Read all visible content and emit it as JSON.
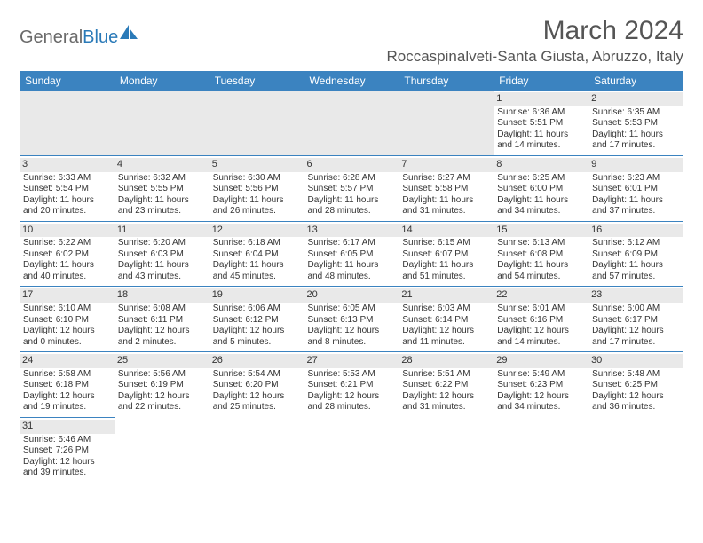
{
  "brand": {
    "part1": "General",
    "part2": "Blue",
    "logo_color": "#2a7ab8"
  },
  "month_title": "March 2024",
  "location": "Roccaspinalveti-Santa Giusta, Abruzzo, Italy",
  "weekdays": [
    "Sunday",
    "Monday",
    "Tuesday",
    "Wednesday",
    "Thursday",
    "Friday",
    "Saturday"
  ],
  "colors": {
    "header_bg": "#3b83c0",
    "header_text": "#ffffff",
    "cell_border": "#3b83c0",
    "daynum_bg": "#e9e9e9",
    "text": "#333333"
  },
  "weeks": [
    [
      {
        "blank": true
      },
      {
        "blank": true
      },
      {
        "blank": true
      },
      {
        "blank": true
      },
      {
        "blank": true
      },
      {
        "day": "1",
        "sunrise": "Sunrise: 6:36 AM",
        "sunset": "Sunset: 5:51 PM",
        "day1": "Daylight: 11 hours",
        "day2": "and 14 minutes."
      },
      {
        "day": "2",
        "sunrise": "Sunrise: 6:35 AM",
        "sunset": "Sunset: 5:53 PM",
        "day1": "Daylight: 11 hours",
        "day2": "and 17 minutes."
      }
    ],
    [
      {
        "day": "3",
        "sunrise": "Sunrise: 6:33 AM",
        "sunset": "Sunset: 5:54 PM",
        "day1": "Daylight: 11 hours",
        "day2": "and 20 minutes."
      },
      {
        "day": "4",
        "sunrise": "Sunrise: 6:32 AM",
        "sunset": "Sunset: 5:55 PM",
        "day1": "Daylight: 11 hours",
        "day2": "and 23 minutes."
      },
      {
        "day": "5",
        "sunrise": "Sunrise: 6:30 AM",
        "sunset": "Sunset: 5:56 PM",
        "day1": "Daylight: 11 hours",
        "day2": "and 26 minutes."
      },
      {
        "day": "6",
        "sunrise": "Sunrise: 6:28 AM",
        "sunset": "Sunset: 5:57 PM",
        "day1": "Daylight: 11 hours",
        "day2": "and 28 minutes."
      },
      {
        "day": "7",
        "sunrise": "Sunrise: 6:27 AM",
        "sunset": "Sunset: 5:58 PM",
        "day1": "Daylight: 11 hours",
        "day2": "and 31 minutes."
      },
      {
        "day": "8",
        "sunrise": "Sunrise: 6:25 AM",
        "sunset": "Sunset: 6:00 PM",
        "day1": "Daylight: 11 hours",
        "day2": "and 34 minutes."
      },
      {
        "day": "9",
        "sunrise": "Sunrise: 6:23 AM",
        "sunset": "Sunset: 6:01 PM",
        "day1": "Daylight: 11 hours",
        "day2": "and 37 minutes."
      }
    ],
    [
      {
        "day": "10",
        "sunrise": "Sunrise: 6:22 AM",
        "sunset": "Sunset: 6:02 PM",
        "day1": "Daylight: 11 hours",
        "day2": "and 40 minutes."
      },
      {
        "day": "11",
        "sunrise": "Sunrise: 6:20 AM",
        "sunset": "Sunset: 6:03 PM",
        "day1": "Daylight: 11 hours",
        "day2": "and 43 minutes."
      },
      {
        "day": "12",
        "sunrise": "Sunrise: 6:18 AM",
        "sunset": "Sunset: 6:04 PM",
        "day1": "Daylight: 11 hours",
        "day2": "and 45 minutes."
      },
      {
        "day": "13",
        "sunrise": "Sunrise: 6:17 AM",
        "sunset": "Sunset: 6:05 PM",
        "day1": "Daylight: 11 hours",
        "day2": "and 48 minutes."
      },
      {
        "day": "14",
        "sunrise": "Sunrise: 6:15 AM",
        "sunset": "Sunset: 6:07 PM",
        "day1": "Daylight: 11 hours",
        "day2": "and 51 minutes."
      },
      {
        "day": "15",
        "sunrise": "Sunrise: 6:13 AM",
        "sunset": "Sunset: 6:08 PM",
        "day1": "Daylight: 11 hours",
        "day2": "and 54 minutes."
      },
      {
        "day": "16",
        "sunrise": "Sunrise: 6:12 AM",
        "sunset": "Sunset: 6:09 PM",
        "day1": "Daylight: 11 hours",
        "day2": "and 57 minutes."
      }
    ],
    [
      {
        "day": "17",
        "sunrise": "Sunrise: 6:10 AM",
        "sunset": "Sunset: 6:10 PM",
        "day1": "Daylight: 12 hours",
        "day2": "and 0 minutes."
      },
      {
        "day": "18",
        "sunrise": "Sunrise: 6:08 AM",
        "sunset": "Sunset: 6:11 PM",
        "day1": "Daylight: 12 hours",
        "day2": "and 2 minutes."
      },
      {
        "day": "19",
        "sunrise": "Sunrise: 6:06 AM",
        "sunset": "Sunset: 6:12 PM",
        "day1": "Daylight: 12 hours",
        "day2": "and 5 minutes."
      },
      {
        "day": "20",
        "sunrise": "Sunrise: 6:05 AM",
        "sunset": "Sunset: 6:13 PM",
        "day1": "Daylight: 12 hours",
        "day2": "and 8 minutes."
      },
      {
        "day": "21",
        "sunrise": "Sunrise: 6:03 AM",
        "sunset": "Sunset: 6:14 PM",
        "day1": "Daylight: 12 hours",
        "day2": "and 11 minutes."
      },
      {
        "day": "22",
        "sunrise": "Sunrise: 6:01 AM",
        "sunset": "Sunset: 6:16 PM",
        "day1": "Daylight: 12 hours",
        "day2": "and 14 minutes."
      },
      {
        "day": "23",
        "sunrise": "Sunrise: 6:00 AM",
        "sunset": "Sunset: 6:17 PM",
        "day1": "Daylight: 12 hours",
        "day2": "and 17 minutes."
      }
    ],
    [
      {
        "day": "24",
        "sunrise": "Sunrise: 5:58 AM",
        "sunset": "Sunset: 6:18 PM",
        "day1": "Daylight: 12 hours",
        "day2": "and 19 minutes."
      },
      {
        "day": "25",
        "sunrise": "Sunrise: 5:56 AM",
        "sunset": "Sunset: 6:19 PM",
        "day1": "Daylight: 12 hours",
        "day2": "and 22 minutes."
      },
      {
        "day": "26",
        "sunrise": "Sunrise: 5:54 AM",
        "sunset": "Sunset: 6:20 PM",
        "day1": "Daylight: 12 hours",
        "day2": "and 25 minutes."
      },
      {
        "day": "27",
        "sunrise": "Sunrise: 5:53 AM",
        "sunset": "Sunset: 6:21 PM",
        "day1": "Daylight: 12 hours",
        "day2": "and 28 minutes."
      },
      {
        "day": "28",
        "sunrise": "Sunrise: 5:51 AM",
        "sunset": "Sunset: 6:22 PM",
        "day1": "Daylight: 12 hours",
        "day2": "and 31 minutes."
      },
      {
        "day": "29",
        "sunrise": "Sunrise: 5:49 AM",
        "sunset": "Sunset: 6:23 PM",
        "day1": "Daylight: 12 hours",
        "day2": "and 34 minutes."
      },
      {
        "day": "30",
        "sunrise": "Sunrise: 5:48 AM",
        "sunset": "Sunset: 6:25 PM",
        "day1": "Daylight: 12 hours",
        "day2": "and 36 minutes."
      }
    ],
    [
      {
        "day": "31",
        "sunrise": "Sunrise: 6:46 AM",
        "sunset": "Sunset: 7:26 PM",
        "day1": "Daylight: 12 hours",
        "day2": "and 39 minutes."
      },
      {
        "blank": true
      },
      {
        "blank": true
      },
      {
        "blank": true
      },
      {
        "blank": true
      },
      {
        "blank": true
      },
      {
        "blank": true
      }
    ]
  ]
}
